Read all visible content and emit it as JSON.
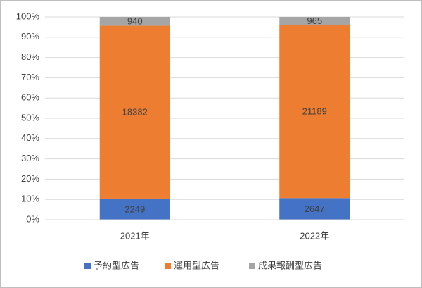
{
  "chart_data": {
    "type": "bar",
    "stack": "percent",
    "categories": [
      "2021年",
      "2022年"
    ],
    "series": [
      {
        "name": "予約型広告",
        "color": "#4472c4",
        "values": [
          2249,
          2647
        ]
      },
      {
        "name": "運用型広告",
        "color": "#ed7d31",
        "values": [
          18382,
          21189
        ]
      },
      {
        "name": "成果報酬型広告",
        "color": "#a5a5a5",
        "values": [
          940,
          965
        ]
      }
    ],
    "ylim": [
      0,
      100
    ],
    "yticks": [
      {
        "value": 0,
        "label": "0%"
      },
      {
        "value": 10,
        "label": "10%"
      },
      {
        "value": 20,
        "label": "20%"
      },
      {
        "value": 30,
        "label": "30%"
      },
      {
        "value": 40,
        "label": "40%"
      },
      {
        "value": 50,
        "label": "50%"
      },
      {
        "value": 60,
        "label": "60%"
      },
      {
        "value": 70,
        "label": "70%"
      },
      {
        "value": 80,
        "label": "80%"
      },
      {
        "value": 90,
        "label": "90%"
      },
      {
        "value": 100,
        "label": "100%"
      }
    ],
    "grid": true,
    "legend": "bottom"
  }
}
